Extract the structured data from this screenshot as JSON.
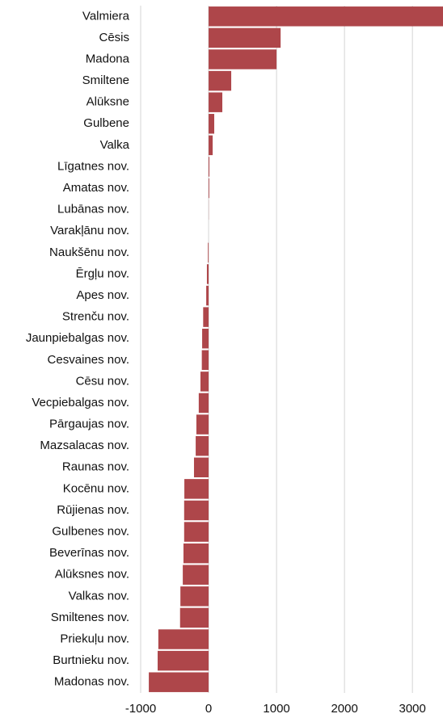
{
  "chart_data": {
    "type": "barh",
    "categories": [
      "Valmiera",
      "Cēsis",
      "Madona",
      "Smiltene",
      "Alūksne",
      "Gulbene",
      "Valka",
      "Līgatnes nov.",
      "Amatas nov.",
      "Lubānas nov.",
      "Varakļānu nov.",
      "Naukšēnu nov.",
      "Ērgļu nov.",
      "Apes nov.",
      "Strenču nov.",
      "Jaunpiebalgas nov.",
      "Cesvaines nov.",
      "Cēsu nov.",
      "Vecpiebalgas nov.",
      "Pārgaujas nov.",
      "Mazsalacas nov.",
      "Raunas nov.",
      "Kocēnu nov.",
      "Rūjienas nov.",
      "Gulbenes nov.",
      "Beverīnas nov.",
      "Alūksnes nov.",
      "Valkas nov.",
      "Smiltenes nov.",
      "Priekuļu nov.",
      "Burtnieku nov.",
      "Madonas nov."
    ],
    "values": [
      3450,
      1060,
      1000,
      333,
      202,
      83,
      60,
      12,
      10,
      2,
      0,
      -10,
      -25,
      -35,
      -80,
      -95,
      -100,
      -120,
      -145,
      -180,
      -190,
      -215,
      -357,
      -360,
      -360,
      -370,
      -380,
      -415,
      -420,
      -740,
      -750,
      -880
    ],
    "color": "#ae464a",
    "xlim": [
      -1000,
      3450
    ],
    "xticks": [
      -1000,
      0,
      1000,
      2000,
      3000
    ],
    "grid": true
  }
}
